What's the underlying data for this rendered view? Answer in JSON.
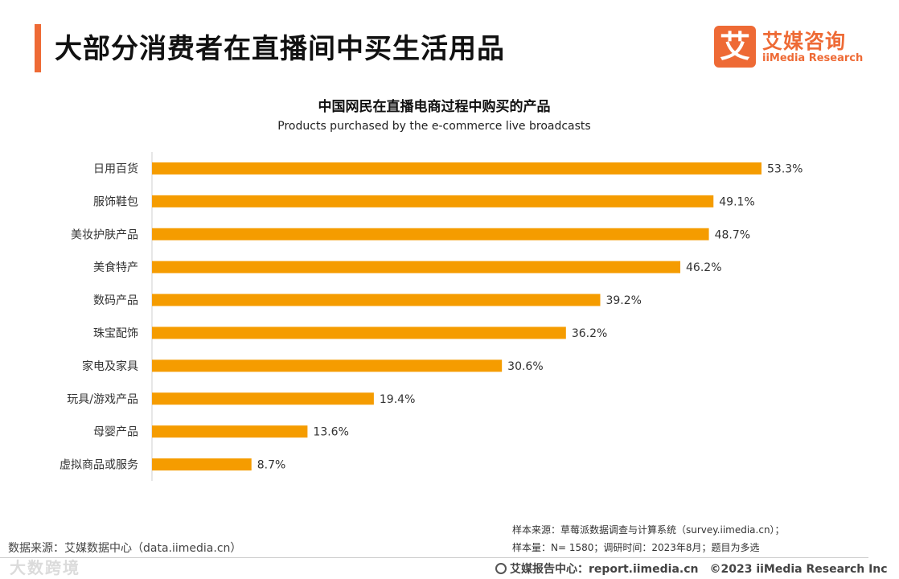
{
  "header": {
    "title": "大部分消费者在直播间中买生活用品",
    "accent_color": "#ee6a35"
  },
  "logo": {
    "mark": "艾",
    "cn": "艾媒咨询",
    "en": "iiMedia Research"
  },
  "chart_data": {
    "type": "bar",
    "orientation": "horizontal",
    "title": "中国网民在直播电商过程中购买的产品",
    "subtitle": "Products purchased by the e-commerce live broadcasts",
    "categories": [
      "日用百货",
      "服饰鞋包",
      "美妆护肤产品",
      "美食特产",
      "数码产品",
      "珠宝配饰",
      "家电及家具",
      "玩具/游戏产品",
      "母婴产品",
      "虚拟商品或服务"
    ],
    "values": [
      53.3,
      49.1,
      48.7,
      46.2,
      39.2,
      36.2,
      30.6,
      19.4,
      13.6,
      8.7
    ],
    "labels": [
      "53.3%",
      "49.1%",
      "48.7%",
      "46.2%",
      "39.2%",
      "36.2%",
      "30.6%",
      "19.4%",
      "13.6%",
      "8.7%"
    ],
    "unit": "%",
    "xlim": [
      0,
      53.3
    ],
    "bar_color": "#f59c00",
    "grid": false
  },
  "notes": {
    "source_line": "样本来源：草莓派数据调查与计算系统（survey.iimedia.cn）；",
    "sample_line": "样本量：N= 1580；调研时间：2023年8月；题目为多选"
  },
  "source_left": "数据来源：艾媒数据中心（data.iimedia.cn）",
  "watermark": "大数跨境",
  "footer": {
    "brand": "艾媒报告中心：report.iimedia.cn",
    "copyright": "©2023  iiMedia Research  Inc"
  }
}
